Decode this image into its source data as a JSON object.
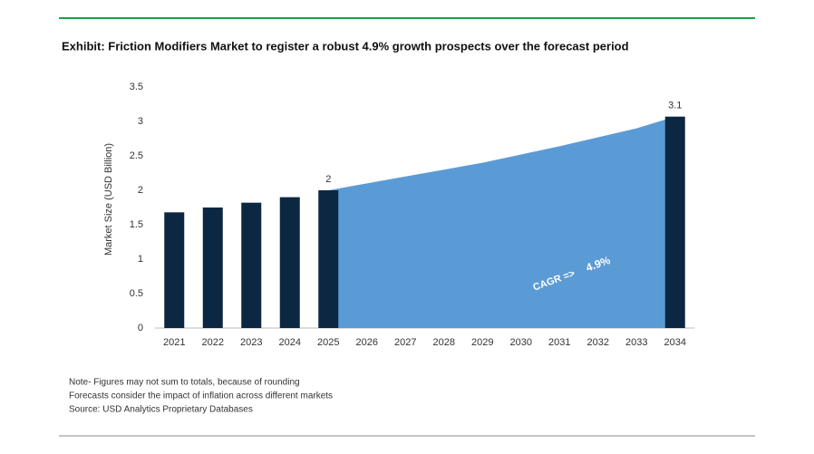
{
  "chart_data": {
    "type": "bar",
    "title": "Exhibit: Friction Modifiers Market to register a robust 4.9% growth prospects over the forecast period",
    "y_label": "Market Size (USD Billion)",
    "categories": [
      "2021",
      "2022",
      "2023",
      "2024",
      "2025",
      "2026",
      "2027",
      "2028",
      "2029",
      "2030",
      "2031",
      "2032",
      "2033",
      "2034"
    ],
    "series": [
      {
        "type": "bar",
        "color": "#0c2742",
        "values": [
          1.68,
          1.75,
          1.82,
          1.9,
          2,
          null,
          null,
          null,
          null,
          null,
          null,
          null,
          null,
          3.07
        ],
        "value_labels": [
          null,
          null,
          null,
          null,
          "2",
          null,
          null,
          null,
          null,
          null,
          null,
          null,
          null,
          "3.1"
        ]
      },
      {
        "type": "area",
        "color": "#5b9bd5",
        "values": [
          null,
          null,
          null,
          null,
          2,
          2.1,
          2.2,
          2.3,
          2.4,
          2.52,
          2.64,
          2.77,
          2.9,
          3.07
        ]
      }
    ],
    "annotations": [
      "CAGR =>",
      "4.9%"
    ],
    "ylim": [
      0,
      3.5
    ],
    "yticks": [
      0,
      0.5,
      1,
      1.5,
      2,
      2.5,
      3,
      3.5
    ],
    "grid": false
  },
  "notes": [
    "Note- Figures may not sum to totals, because of rounding",
    "Forecasts consider the impact of inflation across different markets",
    "Source: USD Analytics Proprietary Databases"
  ]
}
